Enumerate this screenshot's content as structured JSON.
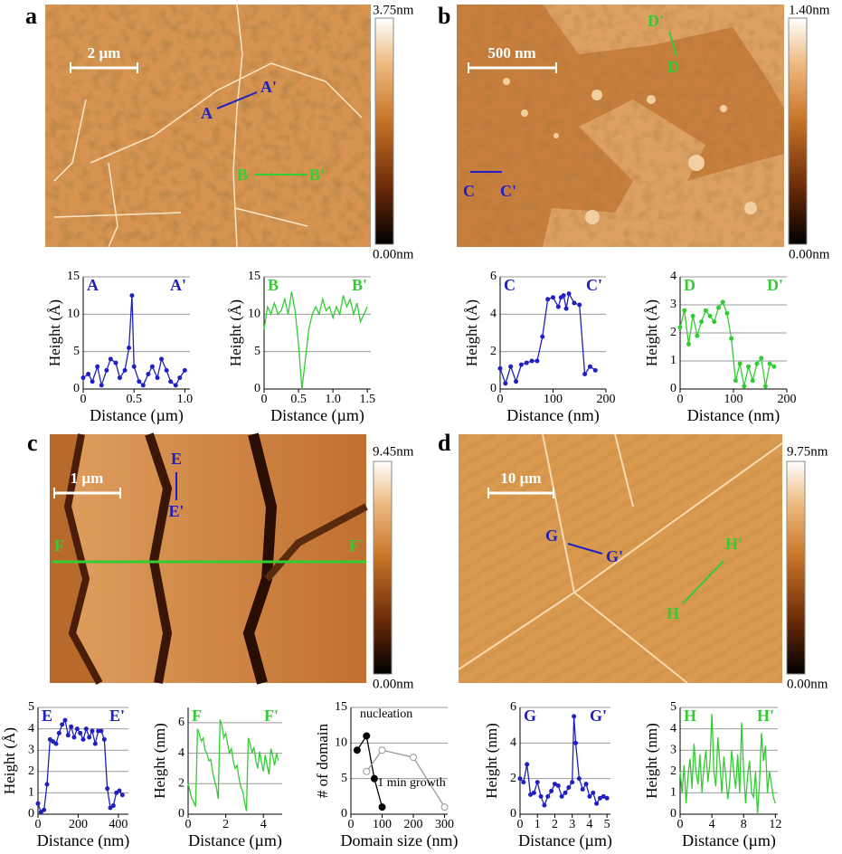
{
  "panels": [
    {
      "letter": "a",
      "scale_bar": "2 µm",
      "colorbar_max": "3.75nm",
      "colorbar_min": "0.00nm",
      "labels": [
        "A",
        "A'",
        "B",
        "B'"
      ]
    },
    {
      "letter": "b",
      "scale_bar": "500 nm",
      "colorbar_max": "1.40nm",
      "colorbar_min": "0.00nm",
      "labels": [
        "C",
        "C'",
        "D",
        "D'"
      ]
    },
    {
      "letter": "c",
      "scale_bar": "1 µm",
      "colorbar_max": "9.45nm",
      "colorbar_min": "0.00nm",
      "labels": [
        "E",
        "E'",
        "F",
        "F'"
      ]
    },
    {
      "letter": "d",
      "scale_bar": "10 µm",
      "colorbar_max": "9.75nm",
      "colorbar_min": "0.00nm",
      "labels": [
        "G",
        "G'",
        "H",
        "H'"
      ]
    }
  ],
  "chart_data": [
    {
      "type": "line",
      "ylabel": "Height (Å)",
      "xlabel": "Distance (µm)",
      "annotations": [
        "A",
        "A'"
      ],
      "xlim": [
        0,
        1.05
      ],
      "xticks": [
        0,
        0.5,
        {
          "value": 1,
          "label": "1.0"
        }
      ],
      "ylim": [
        0,
        15
      ],
      "yticks": [
        0,
        5,
        10,
        15
      ],
      "grid": true,
      "markers": true,
      "series": [
        {
          "color": "#2020c0",
          "x": [
            0,
            0.05,
            0.09,
            0.14,
            0.18,
            0.23,
            0.27,
            0.32,
            0.36,
            0.41,
            0.45,
            0.48,
            0.5,
            0.55,
            0.59,
            0.64,
            0.68,
            0.73,
            0.77,
            0.82,
            0.86,
            0.91,
            0.95,
            1.0
          ],
          "values": [
            1.5,
            2,
            1,
            3,
            0.5,
            2.5,
            4,
            3.5,
            1.5,
            2.5,
            5.5,
            12.5,
            3,
            1,
            0.5,
            2,
            3,
            1.5,
            4,
            2.5,
            1,
            0.5,
            1.5,
            2.5
          ]
        }
      ]
    },
    {
      "type": "line",
      "ylabel": "Height (Å)",
      "xlabel": "Distance (µm)",
      "annotations": [
        "B",
        "B'"
      ],
      "xlim": [
        0,
        1.55
      ],
      "xticks": [
        0,
        0.5,
        {
          "value": 1,
          "label": "1.0"
        },
        1.5
      ],
      "ylim": [
        0,
        15
      ],
      "yticks": [
        0,
        5,
        10,
        15
      ],
      "grid": true,
      "markers": false,
      "series": [
        {
          "color": "#33cc33",
          "x": [
            0,
            0.05,
            0.1,
            0.15,
            0.2,
            0.25,
            0.3,
            0.35,
            0.4,
            0.45,
            0.5,
            0.55,
            0.6,
            0.65,
            0.7,
            0.75,
            0.8,
            0.85,
            0.9,
            0.95,
            1.0,
            1.05,
            1.1,
            1.15,
            1.2,
            1.25,
            1.3,
            1.35,
            1.4,
            1.45,
            1.5
          ],
          "values": [
            8,
            11,
            10,
            11.5,
            10,
            10.5,
            12,
            10,
            13,
            10.5,
            6,
            0,
            4,
            8,
            10,
            11,
            10,
            12,
            10.5,
            11,
            9.5,
            11,
            10,
            12.5,
            11,
            12,
            10,
            11.5,
            9,
            10,
            11
          ]
        }
      ]
    },
    {
      "type": "line",
      "ylabel": "Height (Å)",
      "xlabel": "Distance (nm)",
      "annotations": [
        "C",
        "C'"
      ],
      "xlim": [
        0,
        200
      ],
      "xticks": [
        0,
        100,
        200
      ],
      "ylim": [
        0,
        6
      ],
      "yticks": [
        0,
        2,
        4,
        6
      ],
      "grid": true,
      "markers": true,
      "series": [
        {
          "color": "#2020c0",
          "x": [
            0,
            10,
            20,
            30,
            40,
            50,
            60,
            70,
            80,
            90,
            100,
            110,
            115,
            120,
            125,
            130,
            140,
            150,
            160,
            170,
            180
          ],
          "values": [
            1.1,
            0.3,
            1.2,
            0.4,
            1.3,
            1.4,
            1.5,
            1.5,
            2.8,
            4.8,
            4.9,
            4.4,
            4.9,
            5.0,
            4.3,
            5.1,
            4.6,
            4.5,
            0.8,
            1.2,
            1.0
          ]
        }
      ]
    },
    {
      "type": "line",
      "ylabel": "Height (Å)",
      "xlabel": "Distance (nm)",
      "annotations": [
        "D",
        "D'"
      ],
      "xlim": [
        0,
        200
      ],
      "xticks": [
        0,
        100,
        200
      ],
      "ylim": [
        0,
        4
      ],
      "yticks": [
        0,
        1,
        2,
        3,
        4
      ],
      "grid": true,
      "markers": true,
      "series": [
        {
          "color": "#33cc33",
          "x": [
            0,
            8,
            16,
            24,
            32,
            40,
            48,
            56,
            64,
            72,
            80,
            88,
            96,
            104,
            112,
            120,
            128,
            136,
            144,
            152,
            160,
            168,
            176
          ],
          "values": [
            2.2,
            2.8,
            1.6,
            2.6,
            1.9,
            2.4,
            2.8,
            2.6,
            2.4,
            2.9,
            3.1,
            2.7,
            1.8,
            0.3,
            0.9,
            0.1,
            0.8,
            0.3,
            0.9,
            1.1,
            0.1,
            0.9,
            0.8
          ]
        }
      ]
    },
    {
      "type": "line",
      "ylabel": "Height (Å)",
      "xlabel": "Distance (nm)",
      "annotations": [
        "E",
        "E'"
      ],
      "xlim": [
        0,
        450
      ],
      "xticks": [
        0,
        200,
        400
      ],
      "ylim": [
        0,
        5
      ],
      "yticks": [
        0,
        1,
        2,
        3,
        4,
        5
      ],
      "grid": true,
      "markers": true,
      "series": [
        {
          "color": "#2020c0",
          "x": [
            0,
            15,
            30,
            45,
            60,
            75,
            90,
            105,
            120,
            135,
            150,
            165,
            180,
            195,
            210,
            225,
            240,
            255,
            270,
            285,
            300,
            315,
            330,
            345,
            360,
            375,
            390,
            405,
            420
          ],
          "values": [
            0.5,
            0.1,
            0.2,
            1.4,
            3.5,
            3.4,
            3.3,
            3.8,
            4.2,
            4.4,
            3.7,
            4.1,
            3.6,
            4.0,
            3.8,
            3.5,
            4.0,
            3.6,
            3.9,
            3.3,
            3.9,
            3.9,
            3.5,
            1.2,
            0.3,
            0.4,
            1.0,
            1.1,
            0.9
          ]
        }
      ]
    },
    {
      "type": "line",
      "ylabel": "Height (nm)",
      "xlabel": "Distance (µm)",
      "annotations": [
        "F",
        "F'"
      ],
      "xlim": [
        0,
        5
      ],
      "xticks": [
        0,
        2,
        4
      ],
      "ylim": [
        0,
        7
      ],
      "yticks": [
        0,
        2,
        4,
        6
      ],
      "grid": true,
      "markers": false,
      "series": [
        {
          "color": "#33cc33",
          "x": [
            0,
            0.1,
            0.2,
            0.3,
            0.4,
            0.5,
            0.6,
            0.7,
            0.8,
            0.9,
            1.0,
            1.1,
            1.2,
            1.3,
            1.4,
            1.5,
            1.6,
            1.7,
            1.8,
            1.9,
            2.0,
            2.1,
            2.2,
            2.3,
            2.4,
            2.5,
            2.6,
            2.7,
            2.8,
            2.9,
            3.0,
            3.1,
            3.2,
            3.3,
            3.4,
            3.5,
            3.6,
            3.7,
            3.8,
            3.9,
            4.0,
            4.1,
            4.2,
            4.3,
            4.4,
            4.5,
            4.6,
            4.7,
            4.8
          ],
          "values": [
            2.0,
            1.5,
            1.0,
            0.8,
            0.5,
            5.6,
            5.2,
            4.8,
            5.0,
            4.2,
            4.0,
            3.5,
            3.6,
            2.8,
            2.2,
            1.8,
            1.0,
            6.2,
            5.8,
            5.0,
            5.3,
            4.6,
            4.0,
            4.3,
            3.5,
            3.0,
            3.2,
            2.4,
            1.8,
            1.5,
            0.8,
            0.2,
            5.0,
            4.6,
            4.0,
            4.4,
            3.5,
            3.0,
            4.1,
            3.4,
            2.8,
            3.9,
            3.2,
            2.6,
            4.3,
            3.8,
            3.2,
            4.0,
            3.5
          ]
        }
      ]
    },
    {
      "type": "line",
      "ylabel": "# of domain",
      "xlabel": "Domain size (nm)",
      "xlim": [
        0,
        310
      ],
      "xticks": [
        0,
        100,
        200,
        300
      ],
      "ylim": [
        0,
        15
      ],
      "yticks": [
        0,
        5,
        10,
        15
      ],
      "grid": true,
      "markers": true,
      "series": [
        {
          "name": "nucleation",
          "color": "#000000",
          "marker_fill": "#000000",
          "x": [
            20,
            50,
            75,
            100
          ],
          "values": [
            9,
            11,
            5,
            1
          ]
        },
        {
          "name": "1 min growth",
          "color": "#999999",
          "marker_fill": "#ffffff",
          "x": [
            50,
            100,
            200,
            300
          ],
          "values": [
            6,
            9,
            8,
            1
          ]
        }
      ]
    },
    {
      "type": "line",
      "ylabel": "Height (nm)",
      "xlabel": "Distance (µm)",
      "annotations": [
        "G",
        "G'"
      ],
      "xlim": [
        0,
        5.2
      ],
      "xticks": [
        0,
        1,
        2,
        3,
        4,
        5
      ],
      "ylim": [
        0,
        6
      ],
      "yticks": [
        0,
        2,
        4,
        6
      ],
      "grid": true,
      "markers": true,
      "series": [
        {
          "color": "#2020c0",
          "x": [
            0,
            0.2,
            0.4,
            0.6,
            0.8,
            1.0,
            1.2,
            1.4,
            1.6,
            1.8,
            2.0,
            2.2,
            2.4,
            2.6,
            2.8,
            3.0,
            3.1,
            3.2,
            3.4,
            3.6,
            3.8,
            4.0,
            4.2,
            4.4,
            4.6,
            4.8,
            5.0
          ],
          "values": [
            2.0,
            1.8,
            2.8,
            1.1,
            1.2,
            1.8,
            1.0,
            0.5,
            1.0,
            1.3,
            1.7,
            1.6,
            1.0,
            1.2,
            1.5,
            1.8,
            5.5,
            4.0,
            2.0,
            1.4,
            1.7,
            1.0,
            1.2,
            0.6,
            0.9,
            1.0,
            0.9
          ]
        }
      ]
    },
    {
      "type": "line",
      "ylabel": "Height (nm)",
      "xlabel": "Distance (µm)",
      "annotations": [
        "H",
        "H'"
      ],
      "xlim": [
        0,
        12.3
      ],
      "xticks": [
        0,
        4,
        8,
        12
      ],
      "ylim": [
        0,
        5
      ],
      "yticks": [
        0,
        1,
        2,
        3,
        4,
        5
      ],
      "grid": true,
      "markers": false,
      "series": [
        {
          "color": "#33cc33",
          "x": [
            0,
            0.25,
            0.5,
            0.75,
            1,
            1.25,
            1.5,
            1.75,
            2,
            2.25,
            2.5,
            2.75,
            3,
            3.25,
            3.5,
            3.75,
            4,
            4.25,
            4.5,
            4.75,
            5,
            5.25,
            5.5,
            5.75,
            6,
            6.25,
            6.5,
            6.75,
            7,
            7.25,
            7.5,
            7.75,
            8,
            8.25,
            8.5,
            8.75,
            9,
            9.25,
            9.5,
            9.75,
            10,
            10.25,
            10.5,
            10.75,
            11,
            11.25,
            11.5,
            11.75,
            12
          ],
          "values": [
            2.0,
            1.0,
            2.3,
            0.5,
            1.8,
            2.6,
            1.2,
            3.3,
            2.0,
            1.4,
            2.8,
            1.0,
            2.2,
            3.0,
            1.5,
            2.4,
            4.7,
            2.0,
            1.3,
            3.6,
            2.4,
            1.0,
            2.7,
            1.8,
            0.7,
            1.5,
            3.0,
            2.0,
            1.2,
            2.8,
            1.0,
            4.3,
            2.0,
            0.5,
            1.8,
            2.5,
            1.0,
            0.8,
            2.0,
            0.0,
            1.5,
            3.8,
            2.5,
            3.2,
            1.0,
            2.0,
            1.4,
            0.8,
            0.5
          ]
        }
      ]
    }
  ]
}
